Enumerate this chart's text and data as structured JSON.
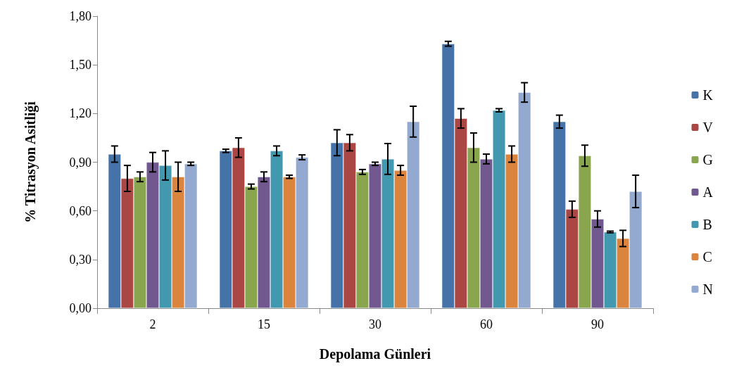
{
  "chart_data": {
    "type": "bar",
    "xlabel": "Depolama Günleri",
    "ylabel": "% Titrasyon Asitliği",
    "categories": [
      "2",
      "15",
      "30",
      "60",
      "90"
    ],
    "ylim": [
      0,
      1.8
    ],
    "yticks": [
      {
        "value": 0,
        "label": "0,00"
      },
      {
        "value": 0.3,
        "label": "0,30"
      },
      {
        "value": 0.6,
        "label": "0,60"
      },
      {
        "value": 0.9,
        "label": "0,90"
      },
      {
        "value": 1.2,
        "label": "1,20"
      },
      {
        "value": 1.5,
        "label": "1,50"
      },
      {
        "value": 1.8,
        "label": "1,80"
      }
    ],
    "grid": false,
    "legend": "right",
    "series": [
      {
        "name": "K",
        "color": "#4572a7",
        "values": [
          0.95,
          0.97,
          1.02,
          1.63,
          1.15
        ],
        "errors": [
          0.05,
          0.01,
          0.08,
          0.015,
          0.04
        ]
      },
      {
        "name": "V",
        "color": "#aa4643",
        "values": [
          0.8,
          0.99,
          1.02,
          1.17,
          0.61
        ],
        "errors": [
          0.08,
          0.06,
          0.05,
          0.06,
          0.05
        ]
      },
      {
        "name": "G",
        "color": "#89a54e",
        "values": [
          0.81,
          0.75,
          0.84,
          0.99,
          0.94
        ],
        "errors": [
          0.03,
          0.015,
          0.015,
          0.09,
          0.065
        ]
      },
      {
        "name": "A",
        "color": "#71588f",
        "values": [
          0.9,
          0.81,
          0.89,
          0.92,
          0.55
        ],
        "errors": [
          0.06,
          0.03,
          0.01,
          0.03,
          0.05
        ]
      },
      {
        "name": "B",
        "color": "#4198af",
        "values": [
          0.88,
          0.97,
          0.92,
          1.22,
          0.47
        ],
        "errors": [
          0.09,
          0.03,
          0.095,
          0.01,
          0.005
        ]
      },
      {
        "name": "C",
        "color": "#db843d",
        "values": [
          0.81,
          0.81,
          0.85,
          0.95,
          0.43
        ],
        "errors": [
          0.09,
          0.01,
          0.03,
          0.05,
          0.05
        ]
      },
      {
        "name": "N",
        "color": "#93a9cf",
        "values": [
          0.89,
          0.93,
          1.15,
          1.33,
          0.72
        ],
        "errors": [
          0.01,
          0.015,
          0.095,
          0.06,
          0.1
        ]
      }
    ]
  }
}
